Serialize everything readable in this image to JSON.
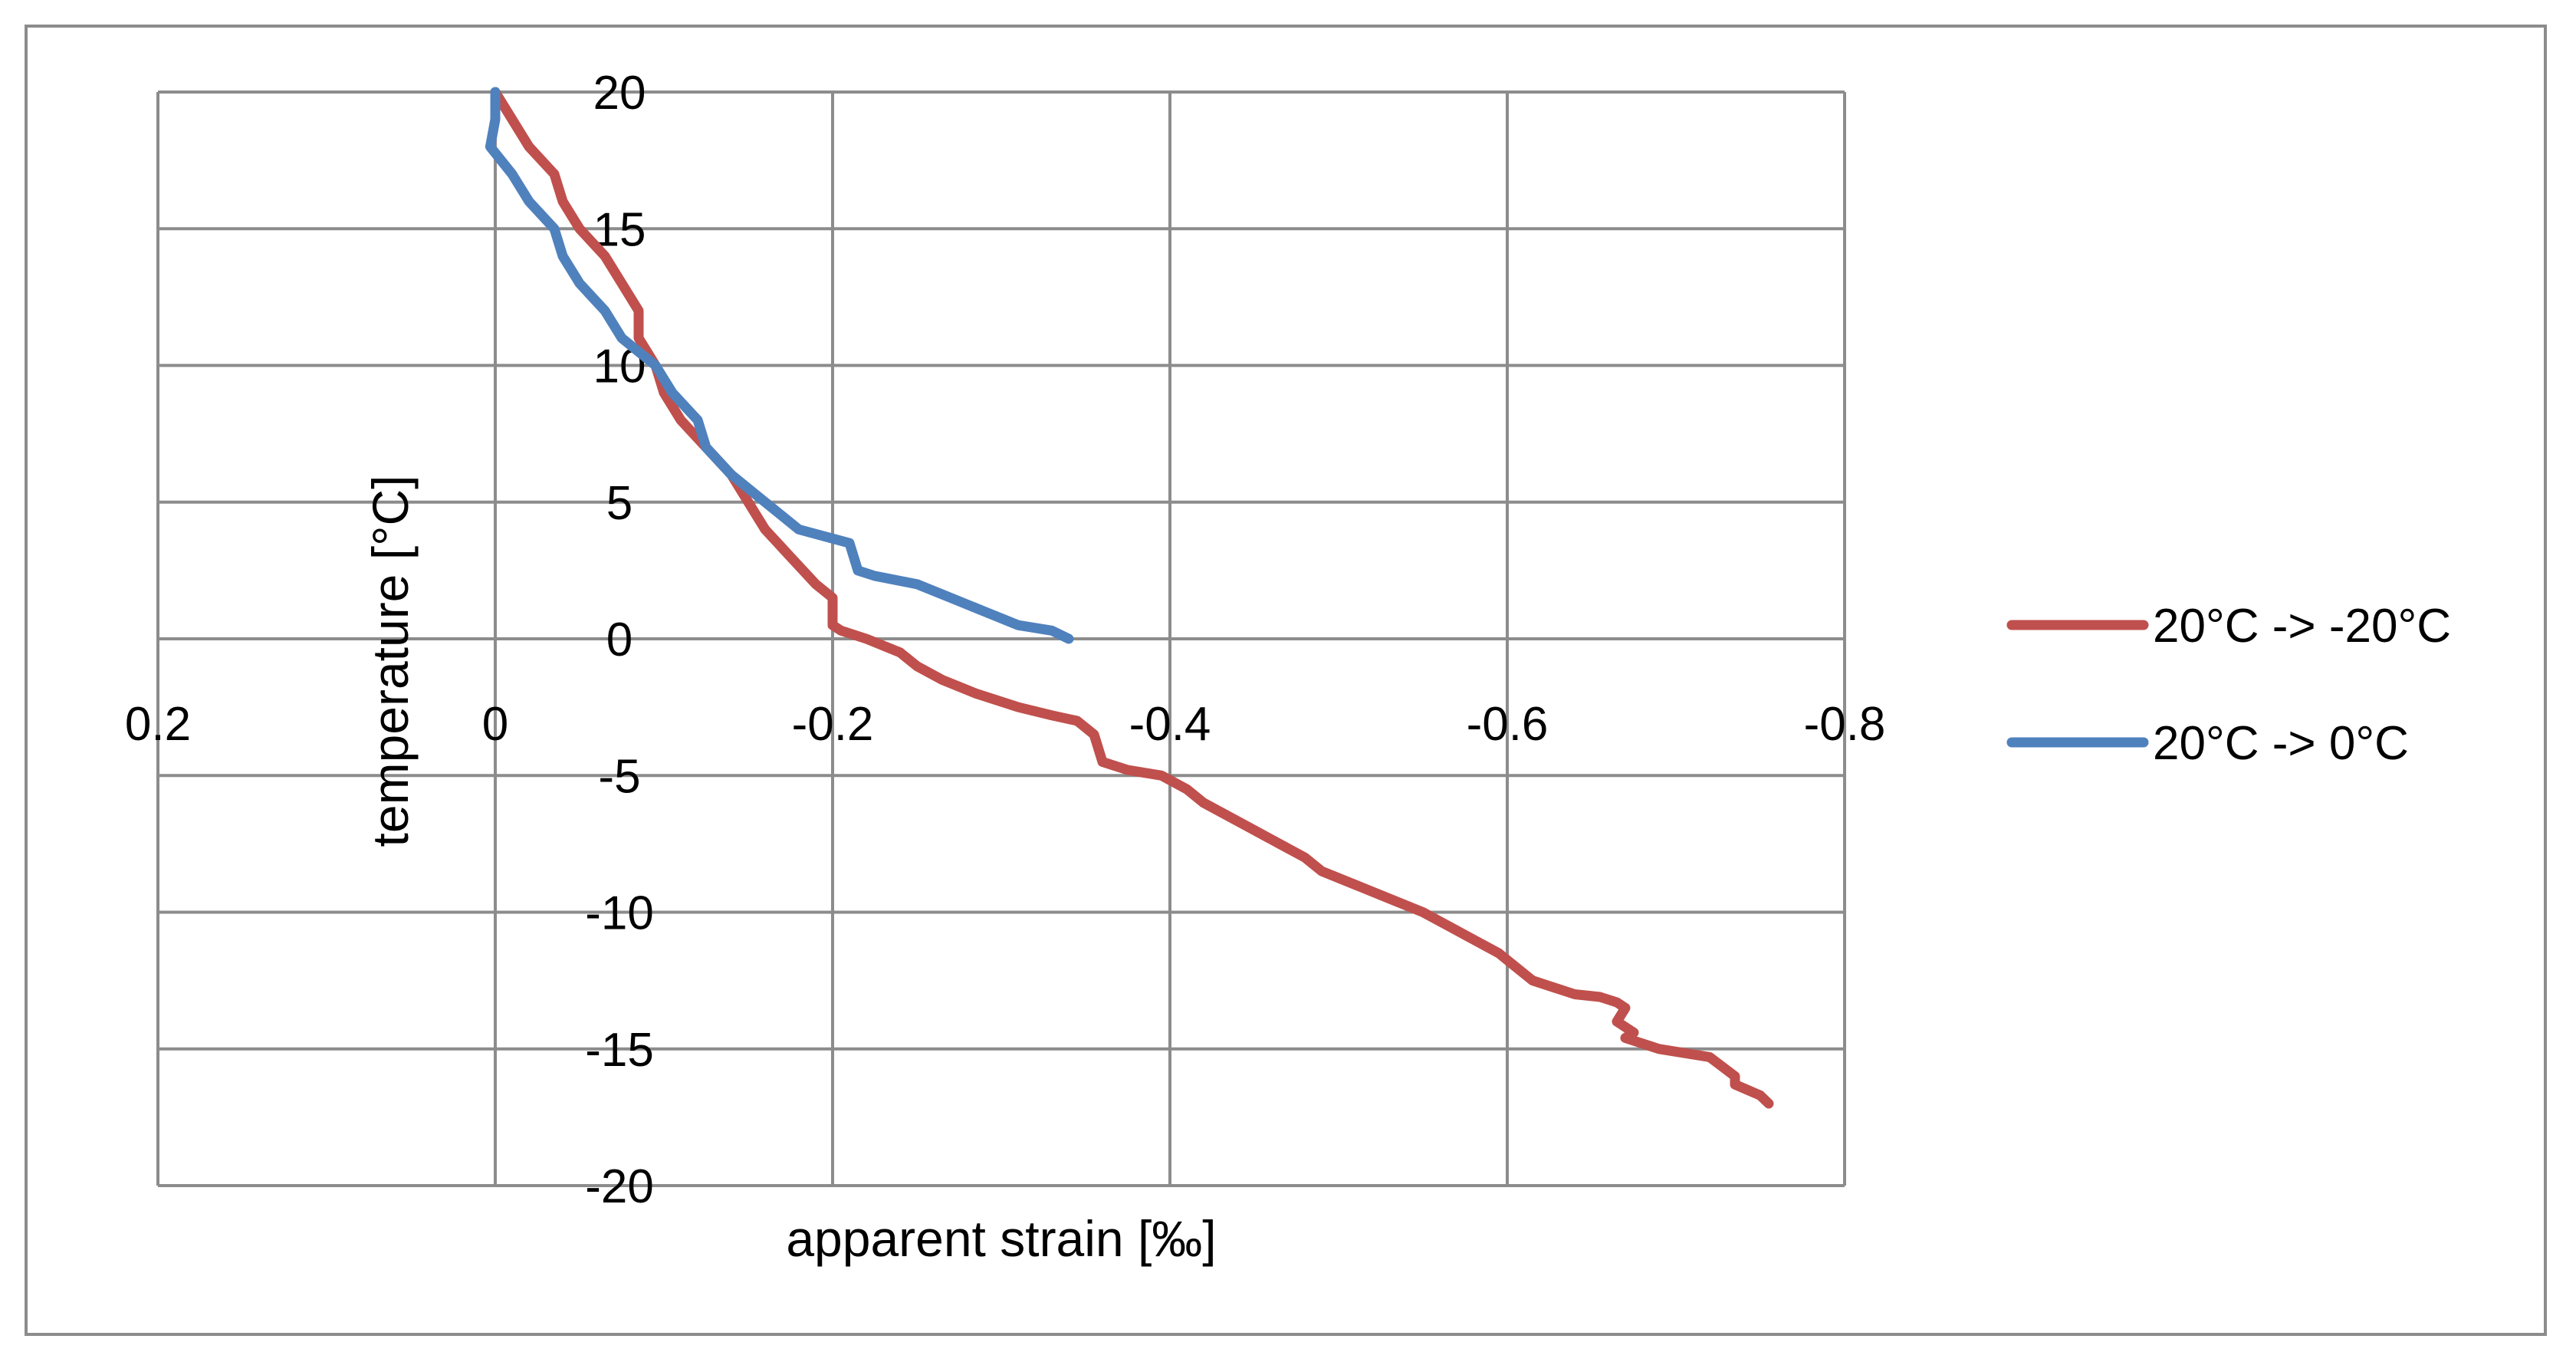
{
  "chart_data": {
    "type": "line",
    "title": "",
    "xlabel": "apparent strain [‰]",
    "ylabel": "temperature [°C]",
    "xlim": [
      0.2,
      -0.8
    ],
    "ylim": [
      -20,
      20
    ],
    "x_ticks": [
      0.2,
      0,
      -0.2,
      -0.4,
      -0.6,
      -0.8
    ],
    "x_tick_labels": [
      "0.2",
      "0",
      "-0.2",
      "-0.4",
      "-0.6",
      "-0.8"
    ],
    "y_ticks": [
      20,
      15,
      10,
      5,
      0,
      -5,
      -10,
      -15,
      -20
    ],
    "y_tick_labels": [
      "20",
      "15",
      "10",
      "5",
      "0",
      "-5",
      "-10",
      "-15",
      "-20"
    ],
    "grid": true,
    "legend_position": "right",
    "series": [
      {
        "name": "20°C -> -20°C",
        "color": "#c0504d",
        "x": [
          0,
          -0.01,
          -0.02,
          -0.035,
          -0.04,
          -0.05,
          -0.065,
          -0.075,
          -0.085,
          -0.085,
          -0.095,
          -0.1,
          -0.11,
          -0.125,
          -0.14,
          -0.15,
          -0.16,
          -0.175,
          -0.19,
          -0.2,
          -0.2,
          -0.205,
          -0.22,
          -0.24,
          -0.25,
          -0.265,
          -0.285,
          -0.31,
          -0.33,
          -0.345,
          -0.355,
          -0.36,
          -0.375,
          -0.395,
          -0.41,
          -0.42,
          -0.45,
          -0.465,
          -0.48,
          -0.49,
          -0.51,
          -0.53,
          -0.55,
          -0.565,
          -0.58,
          -0.595,
          -0.605,
          -0.615,
          -0.64,
          -0.655,
          -0.665,
          -0.67,
          -0.665,
          -0.675,
          -0.67,
          -0.69,
          -0.72,
          -0.735,
          -0.735,
          -0.75,
          -0.755
        ],
        "y": [
          20,
          19,
          18,
          17,
          16,
          15,
          14,
          13,
          12,
          11,
          10,
          9,
          8,
          7,
          6,
          5,
          4,
          3,
          2,
          1.5,
          0.5,
          0.3,
          0,
          -0.5,
          -1,
          -1.5,
          -2,
          -2.5,
          -2.8,
          -3,
          -3.5,
          -4.5,
          -4.8,
          -5,
          -5.5,
          -6,
          -7,
          -7.5,
          -8,
          -8.5,
          -9,
          -9.5,
          -10,
          -10.5,
          -11,
          -11.5,
          -12,
          -12.5,
          -13,
          -13.1,
          -13.3,
          -13.5,
          -14,
          -14.4,
          -14.6,
          -15,
          -15.3,
          -16,
          -16.3,
          -16.7,
          -17
        ]
      },
      {
        "name": "20°C -> 0°C",
        "color": "#4f81bd",
        "x": [
          0,
          0,
          0.003,
          -0.01,
          -0.02,
          -0.035,
          -0.04,
          -0.05,
          -0.065,
          -0.075,
          -0.085,
          -0.095,
          -0.105,
          -0.12,
          -0.125,
          -0.14,
          -0.16,
          -0.17,
          -0.18,
          -0.21,
          -0.215,
          -0.225,
          -0.25,
          -0.27,
          -0.29,
          -0.31,
          -0.33,
          -0.34
        ],
        "y": [
          20,
          19,
          18,
          17,
          16,
          15,
          14,
          13,
          12,
          11,
          10.5,
          10,
          9,
          8,
          7,
          6,
          5,
          4.5,
          4,
          3.5,
          2.5,
          2.3,
          2,
          1.5,
          1,
          0.5,
          0.3,
          0
        ]
      }
    ]
  }
}
